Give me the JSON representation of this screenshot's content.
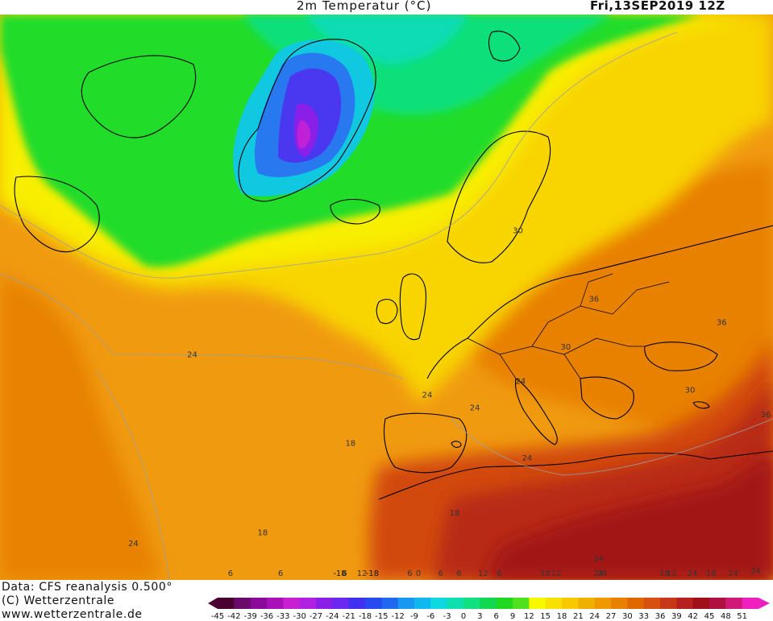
{
  "header": {
    "title": "2m Temperatur (°C)",
    "date": "Fri,13SEP2019 12Z"
  },
  "footer": {
    "line1": "Data: CFS reanalysis 0.500°",
    "line2": "(C) Wetterzentrale",
    "line3": "www.wetterzentrale.de"
  },
  "colorbar": {
    "ticks": [
      "-45",
      "-42",
      "-39",
      "-36",
      "-33",
      "-30",
      "-27",
      "-24",
      "-21",
      "-18",
      "-15",
      "-12",
      "-9",
      "-6",
      "-3",
      "0",
      "3",
      "6",
      "9",
      "12",
      "15",
      "18",
      "21",
      "24",
      "27",
      "30",
      "33",
      "36",
      "39",
      "42",
      "45",
      "48",
      "51"
    ],
    "colors": [
      "#4a0030",
      "#6a0a6a",
      "#8a0a9a",
      "#a810b8",
      "#c820d0",
      "#b020e0",
      "#8a20e8",
      "#6a28f0",
      "#4030f0",
      "#2848f0",
      "#2068f0",
      "#1898f0",
      "#10b8f0",
      "#10d8e0",
      "#10e0b0",
      "#10e080",
      "#10d850",
      "#20d820",
      "#50e020",
      "#f8f800",
      "#f8e000",
      "#f8c800",
      "#f0b000",
      "#f09800",
      "#e88000",
      "#e06800",
      "#d85010",
      "#c83818",
      "#b82020",
      "#a01018",
      "#b01040",
      "#d01878",
      "#f020c0"
    ]
  },
  "contour_labels": [
    {
      "text": "0",
      "lon": -15,
      "lat": 77,
      "color": "#333"
    },
    {
      "text": "6",
      "lon": 5,
      "lat": 74,
      "color": "#333"
    },
    {
      "text": "12",
      "lon": 15,
      "lat": 73,
      "color": "#333"
    },
    {
      "text": "-18",
      "lon": -40,
      "lat": 76,
      "color": "#111"
    },
    {
      "text": "-18",
      "lon": -42,
      "lat": 69,
      "color": "#111"
    },
    {
      "text": "6",
      "lon": -66,
      "lat": 78,
      "color": "#333"
    },
    {
      "text": "6",
      "lon": -5,
      "lat": 70,
      "color": "#333"
    },
    {
      "text": "6",
      "lon": -15,
      "lat": 64,
      "color": "#333"
    },
    {
      "text": "6",
      "lon": -65,
      "lat": 61,
      "color": "#333"
    },
    {
      "text": "6",
      "lon": -48,
      "lat": 60,
      "color": "#333"
    },
    {
      "text": "6",
      "lon": 11,
      "lat": 64,
      "color": "#333"
    },
    {
      "text": "12",
      "lon": -24,
      "lat": 55,
      "color": "#333"
    },
    {
      "text": "18",
      "lon": -40,
      "lat": 48,
      "color": "#333"
    },
    {
      "text": "24",
      "lon": -60,
      "lat": 43,
      "color": "#333"
    },
    {
      "text": "18",
      "lon": -22,
      "lat": 42,
      "color": "#333"
    },
    {
      "text": "18",
      "lon": -5,
      "lat": 49,
      "color": "#333"
    },
    {
      "text": "24",
      "lon": -40,
      "lat": 30,
      "color": "#333"
    },
    {
      "text": "24",
      "lon": -10,
      "lat": 38,
      "color": "#333"
    },
    {
      "text": "24",
      "lon": -3,
      "lat": 39,
      "color": "#333"
    },
    {
      "text": "24",
      "lon": 3,
      "lat": 36,
      "color": "#333"
    },
    {
      "text": "24",
      "lon": 6,
      "lat": 43,
      "color": "#333"
    },
    {
      "text": "24",
      "lon": 23,
      "lat": 50,
      "color": "#333"
    },
    {
      "text": "24",
      "lon": 32,
      "lat": 58,
      "color": "#333"
    },
    {
      "text": "24",
      "lon": 40,
      "lat": 62,
      "color": "#333"
    },
    {
      "text": "24",
      "lon": 42,
      "lat": 49,
      "color": "#333"
    },
    {
      "text": "24",
      "lon": 47,
      "lat": 43,
      "color": "#333"
    },
    {
      "text": "18",
      "lon": 30,
      "lat": 67,
      "color": "#333"
    },
    {
      "text": "30",
      "lon": 8,
      "lat": 32,
      "color": "#333"
    },
    {
      "text": "30",
      "lon": 25,
      "lat": 32,
      "color": "#333"
    },
    {
      "text": "36",
      "lon": 10,
      "lat": 27,
      "color": "#333"
    },
    {
      "text": "36",
      "lon": 25,
      "lat": 25,
      "color": "#333"
    },
    {
      "text": "36",
      "lon": 40,
      "lat": 28,
      "color": "#333"
    },
    {
      "text": "30",
      "lon": 0,
      "lat": 22,
      "color": "#333"
    },
    {
      "text": "12",
      "lon": 22,
      "lat": 59,
      "color": "#333"
    },
    {
      "text": "18",
      "lon": 45,
      "lat": 55,
      "color": "#333"
    },
    {
      "text": "12",
      "lon": 47,
      "lat": 55,
      "color": "#333"
    },
    {
      "text": "24",
      "lon": 50,
      "lat": 48,
      "color": "#333"
    },
    {
      "text": "18",
      "lon": 50,
      "lat": 51,
      "color": "#333"
    }
  ]
}
